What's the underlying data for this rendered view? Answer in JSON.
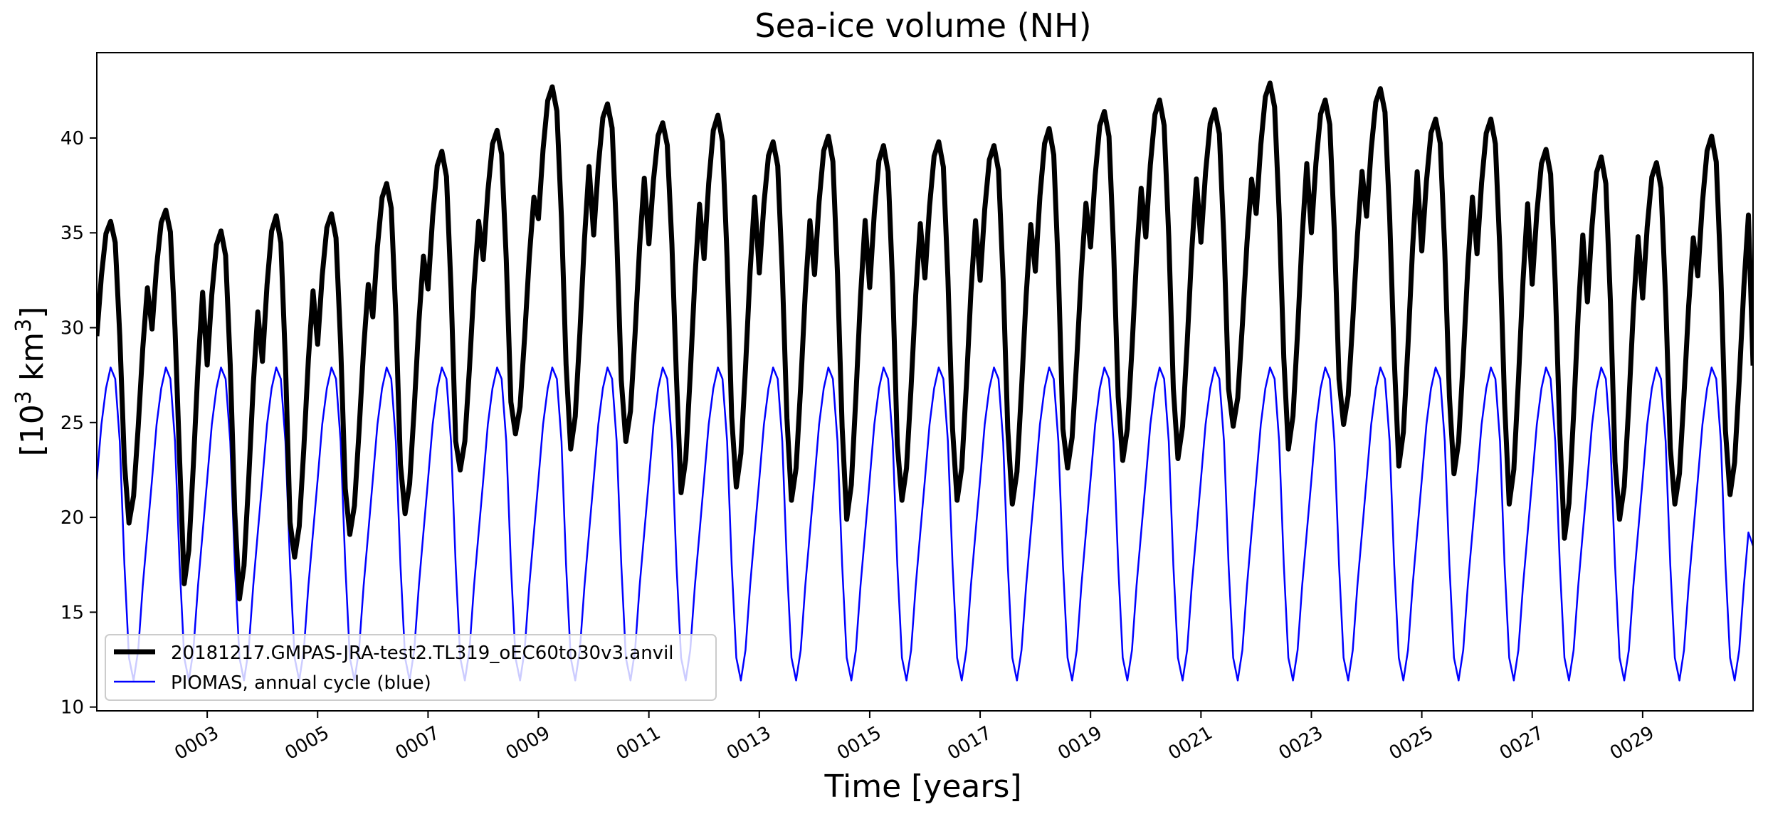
{
  "chart_data": {
    "type": "line",
    "title": "Sea-ice volume (NH)",
    "xlabel": "Time [years]",
    "ylabel_base": "[10",
    "ylabel_exp1": "3",
    "ylabel_mid": " km",
    "ylabel_exp2": "3",
    "ylabel_end": "]",
    "x_start": 1.0,
    "x_end": 31.0,
    "xlim": [
      1.0,
      31.0
    ],
    "ylim": [
      9.8,
      44.5
    ],
    "grid": false,
    "legend_placement": "lower-left",
    "x_ticks": [
      3,
      5,
      7,
      9,
      11,
      13,
      15,
      17,
      19,
      21,
      23,
      25,
      27,
      29
    ],
    "x_tick_labels": [
      "0003",
      "0005",
      "0007",
      "0009",
      "0011",
      "0013",
      "0015",
      "0017",
      "0019",
      "0021",
      "0023",
      "0025",
      "0027",
      "0029"
    ],
    "y_ticks": [
      10,
      15,
      20,
      25,
      30,
      35,
      40
    ],
    "y_tick_labels": [
      "10",
      "15",
      "20",
      "25",
      "30",
      "35",
      "40"
    ],
    "samples_per_year": 12,
    "piomas_monthly": [
      22.0,
      24.9,
      26.8,
      27.9,
      27.3,
      24.0,
      17.5,
      12.6,
      11.4,
      13.0,
      16.4,
      19.2
    ],
    "model_annual_max": [
      35.6,
      36.2,
      35.1,
      35.9,
      36.0,
      37.6,
      39.3,
      40.4,
      42.7,
      41.8,
      40.8,
      41.2,
      39.8,
      40.1,
      39.6,
      39.8,
      39.6,
      40.5,
      41.4,
      42.0,
      41.5,
      42.9,
      42.0,
      42.6,
      41.0,
      41.0,
      39.4,
      39.0,
      38.7,
      40.1
    ],
    "model_annual_min": [
      19.7,
      16.5,
      15.7,
      17.9,
      19.1,
      20.2,
      22.5,
      24.4,
      23.6,
      24.0,
      21.3,
      21.6,
      20.9,
      19.9,
      20.9,
      20.9,
      20.7,
      22.6,
      23.0,
      23.1,
      24.8,
      23.6,
      24.9,
      22.7,
      22.3,
      20.7,
      18.9,
      19.9,
      20.7,
      21.2
    ],
    "series": [
      {
        "name": "20181217.GMPAS-JRA-test2.TL319_oEC60to30v3.anvil",
        "color": "#000000"
      },
      {
        "name": "PIOMAS, annual cycle (blue)",
        "color": "#0000ff"
      }
    ]
  }
}
